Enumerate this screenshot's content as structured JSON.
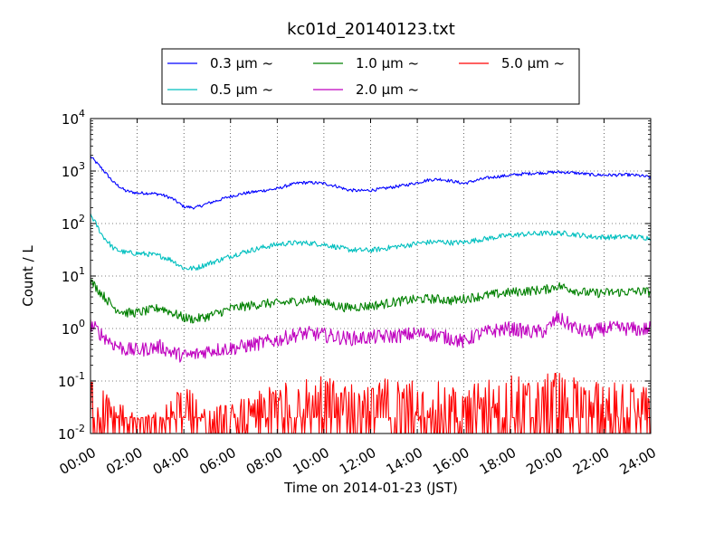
{
  "chart_data": {
    "type": "line",
    "title": "kc01d_20140123.txt",
    "xlabel": "Time on 2014-01-23 (JST)",
    "ylabel": "Count / L",
    "y_scale": "log",
    "ylim": [
      0.01,
      10000
    ],
    "xlim": [
      "00:00",
      "24:00"
    ],
    "x_ticks": [
      "00:00",
      "02:00",
      "04:00",
      "06:00",
      "08:00",
      "10:00",
      "12:00",
      "14:00",
      "16:00",
      "18:00",
      "20:00",
      "22:00",
      "24:00"
    ],
    "y_ticks": [
      {
        "value": 0.01,
        "base": "10",
        "exp": "-2"
      },
      {
        "value": 0.1,
        "base": "10",
        "exp": "-1"
      },
      {
        "value": 1,
        "base": "10",
        "exp": "0"
      },
      {
        "value": 10,
        "base": "10",
        "exp": "1"
      },
      {
        "value": 100,
        "base": "10",
        "exp": "2"
      },
      {
        "value": 1000,
        "base": "10",
        "exp": "3"
      },
      {
        "value": 10000,
        "base": "10",
        "exp": "4"
      }
    ],
    "grid": true,
    "legend_position": "top-center",
    "x": [
      "00:00",
      "00:30",
      "01:00",
      "01:30",
      "02:00",
      "02:30",
      "03:00",
      "03:30",
      "04:00",
      "04:30",
      "05:00",
      "05:30",
      "06:00",
      "06:30",
      "07:00",
      "07:30",
      "08:00",
      "08:30",
      "09:00",
      "09:30",
      "10:00",
      "10:30",
      "11:00",
      "11:30",
      "12:00",
      "12:30",
      "13:00",
      "13:30",
      "14:00",
      "14:30",
      "15:00",
      "15:30",
      "16:00",
      "16:30",
      "17:00",
      "17:30",
      "18:00",
      "18:30",
      "19:00",
      "19:30",
      "20:00",
      "20:30",
      "21:00",
      "21:30",
      "22:00",
      "22:30",
      "23:00",
      "23:30",
      "24:00"
    ],
    "series": [
      {
        "name": "0.3 μm ~",
        "color": "#0000ff",
        "noise": 0.03,
        "values": [
          1900,
          1100,
          600,
          420,
          380,
          380,
          360,
          300,
          210,
          200,
          240,
          280,
          330,
          370,
          400,
          430,
          460,
          540,
          600,
          600,
          580,
          520,
          440,
          420,
          430,
          460,
          500,
          540,
          600,
          680,
          700,
          640,
          580,
          660,
          740,
          790,
          830,
          880,
          910,
          930,
          960,
          940,
          900,
          850,
          840,
          840,
          850,
          820,
          760
        ]
      },
      {
        "name": "0.5 μm ~",
        "color": "#00bfbf",
        "noise": 0.05,
        "values": [
          150,
          60,
          33,
          28,
          27,
          26,
          24,
          20,
          14,
          14,
          17,
          20,
          24,
          28,
          32,
          36,
          40,
          42,
          43,
          42,
          40,
          36,
          32,
          31,
          31,
          33,
          36,
          38,
          42,
          44,
          45,
          43,
          44,
          48,
          52,
          56,
          60,
          62,
          64,
          65,
          66,
          64,
          60,
          56,
          55,
          55,
          56,
          55,
          53
        ]
      },
      {
        "name": "1.0 μm ~",
        "color": "#008000",
        "noise": 0.09,
        "values": [
          8,
          4.5,
          2.5,
          2,
          2,
          2.2,
          2.5,
          2,
          1.6,
          1.5,
          1.7,
          2,
          2.4,
          2.6,
          2.8,
          3,
          3,
          3.2,
          3.4,
          3.5,
          3.2,
          2.7,
          2.5,
          2.6,
          2.7,
          2.9,
          3.2,
          3.4,
          3.6,
          3.7,
          3.6,
          3.4,
          3.7,
          4,
          4.3,
          4.6,
          4.9,
          5.1,
          5.3,
          5.5,
          6.5,
          5.8,
          5,
          4.7,
          4.8,
          4.9,
          5,
          5.1,
          5
        ]
      },
      {
        "name": "2.0 μm ~",
        "color": "#bf00bf",
        "noise": 0.14,
        "values": [
          1.2,
          0.75,
          0.5,
          0.4,
          0.38,
          0.42,
          0.45,
          0.35,
          0.3,
          0.32,
          0.38,
          0.4,
          0.42,
          0.45,
          0.5,
          0.55,
          0.6,
          0.7,
          0.8,
          0.8,
          0.75,
          0.7,
          0.65,
          0.65,
          0.68,
          0.7,
          0.72,
          0.75,
          0.8,
          0.78,
          0.72,
          0.65,
          0.55,
          0.75,
          0.85,
          0.95,
          1,
          0.9,
          0.85,
          0.9,
          1.6,
          1.2,
          0.9,
          0.85,
          1,
          1,
          1,
          0.95,
          1
        ]
      },
      {
        "name": "5.0 μm ~",
        "color": "#ff0000",
        "noise": 0,
        "values": [
          0.05,
          0.03,
          0.02,
          0.015,
          0.01,
          0.01,
          0.012,
          0.02,
          0.04,
          0.03,
          0.02,
          0.015,
          0.015,
          0.02,
          0.025,
          0.03,
          0.04,
          0.05,
          0.06,
          0.06,
          0.05,
          0.045,
          0.04,
          0.045,
          0.05,
          0.05,
          0.045,
          0.04,
          0.05,
          0.045,
          0.04,
          0.035,
          0.025,
          0.04,
          0.05,
          0.055,
          0.06,
          0.05,
          0.045,
          0.05,
          0.12,
          0.06,
          0.045,
          0.04,
          0.045,
          0.04,
          0.04,
          0.035,
          0.03
        ]
      }
    ]
  }
}
